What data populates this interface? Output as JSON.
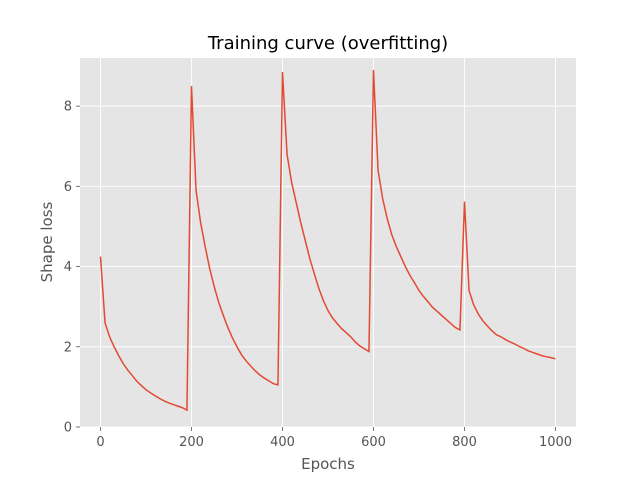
{
  "chart_data": {
    "type": "line",
    "title": "Training curve (overfitting)",
    "xlabel": "Epochs",
    "ylabel": "Shape loss",
    "xlim": [
      -45,
      1045
    ],
    "ylim": [
      0,
      9.2
    ],
    "xticks": [
      0,
      200,
      400,
      600,
      800,
      1000
    ],
    "yticks": [
      0,
      2,
      4,
      6,
      8
    ],
    "grid": true,
    "style": "ggplot",
    "colors": {
      "background": "#E5E5E5",
      "grid": "#FFFFFF",
      "line": "#E24A33",
      "tick": "#555555"
    },
    "series": [
      {
        "x": [
          0,
          10,
          20,
          30,
          40,
          50,
          60,
          70,
          80,
          90,
          100,
          110,
          120,
          130,
          140,
          150,
          160,
          170,
          180,
          190,
          200,
          210,
          220,
          230,
          240,
          250,
          260,
          270,
          280,
          290,
          300,
          310,
          320,
          330,
          340,
          350,
          360,
          370,
          380,
          390,
          400,
          410,
          420,
          430,
          440,
          450,
          460,
          470,
          480,
          490,
          500,
          510,
          520,
          530,
          540,
          550,
          560,
          570,
          580,
          590,
          600,
          610,
          620,
          630,
          640,
          650,
          660,
          670,
          680,
          690,
          700,
          710,
          720,
          730,
          740,
          750,
          760,
          770,
          780,
          790,
          800,
          810,
          820,
          830,
          840,
          850,
          860,
          870,
          880,
          890,
          900,
          910,
          920,
          930,
          940,
          950,
          960,
          970,
          980,
          990,
          1000
        ],
        "y": [
          4.25,
          2.6,
          2.25,
          2.0,
          1.78,
          1.58,
          1.42,
          1.28,
          1.14,
          1.03,
          0.93,
          0.85,
          0.78,
          0.71,
          0.65,
          0.6,
          0.56,
          0.52,
          0.48,
          0.42,
          8.5,
          5.9,
          5.1,
          4.5,
          3.95,
          3.5,
          3.1,
          2.78,
          2.48,
          2.22,
          2.0,
          1.8,
          1.65,
          1.52,
          1.4,
          1.3,
          1.22,
          1.15,
          1.08,
          1.05,
          8.85,
          6.8,
          6.1,
          5.6,
          5.1,
          4.65,
          4.2,
          3.82,
          3.45,
          3.15,
          2.9,
          2.72,
          2.58,
          2.45,
          2.35,
          2.25,
          2.12,
          2.02,
          1.95,
          1.88,
          8.9,
          6.4,
          5.7,
          5.2,
          4.8,
          4.5,
          4.25,
          4.0,
          3.78,
          3.6,
          3.4,
          3.25,
          3.12,
          2.98,
          2.88,
          2.78,
          2.68,
          2.58,
          2.48,
          2.42,
          5.62,
          3.4,
          3.05,
          2.82,
          2.65,
          2.52,
          2.4,
          2.3,
          2.25,
          2.18,
          2.12,
          2.07,
          2.01,
          1.96,
          1.9,
          1.86,
          1.82,
          1.78,
          1.75,
          1.73,
          1.7
        ]
      }
    ]
  }
}
